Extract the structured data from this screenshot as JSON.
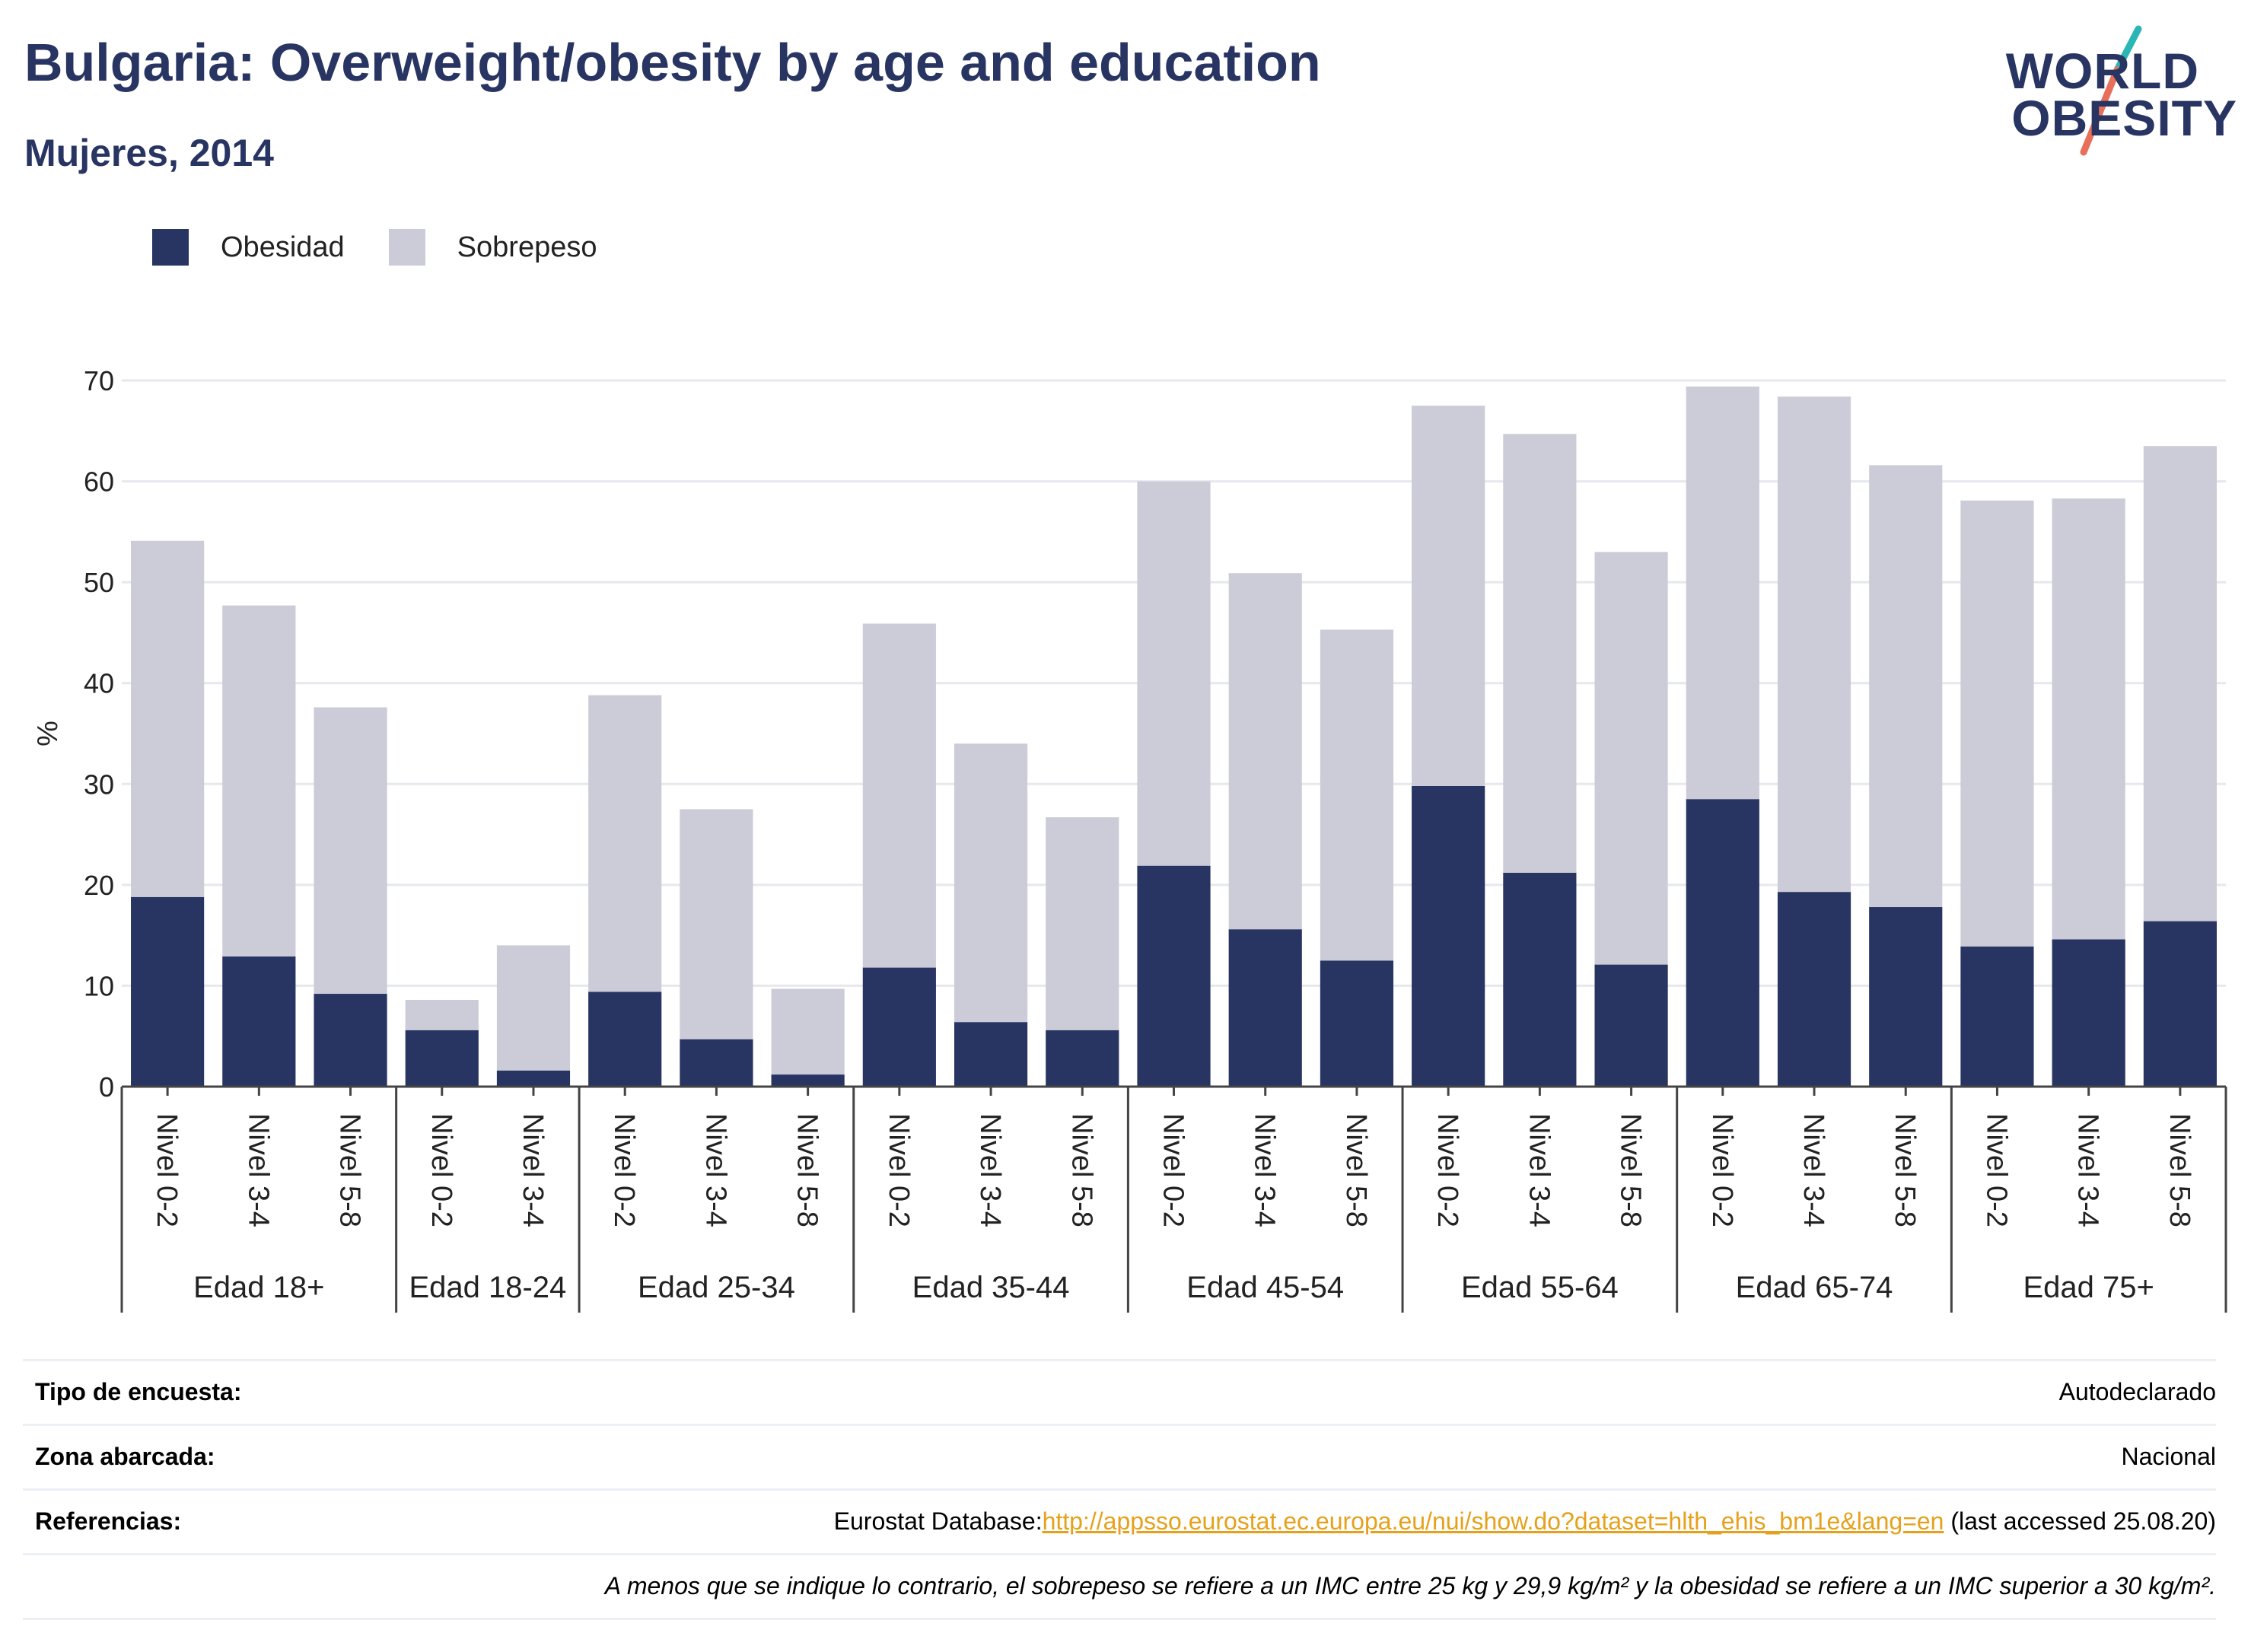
{
  "header": {
    "title": "Bulgaria: Overweight/obesity by age and education",
    "subtitle": "Mujeres, 2014"
  },
  "logo": {
    "line1": "WORLD",
    "line2": "OBESITY",
    "colors": {
      "text": "#283462",
      "slash_top": "#2cb5b5",
      "slash_bottom": "#e8705a"
    }
  },
  "legend": {
    "items": [
      {
        "label": "Obesidad",
        "color": "#283462"
      },
      {
        "label": "Sobrepeso",
        "color": "#cbccd8"
      }
    ]
  },
  "chart_data": {
    "type": "bar",
    "stacked": true,
    "ylabel": "%",
    "ylim": [
      0,
      70
    ],
    "yticks": [
      0,
      10,
      20,
      30,
      40,
      50,
      60,
      70
    ],
    "grid": true,
    "groups": [
      {
        "label": "Edad 18+",
        "categories": [
          "Nivel 0-2",
          "Nivel 3-4",
          "Nivel 5-8"
        ]
      },
      {
        "label": "Edad 18-24",
        "categories": [
          "Nivel 0-2",
          "Nivel 3-4"
        ]
      },
      {
        "label": "Edad 25-34",
        "categories": [
          "Nivel 0-2",
          "Nivel 3-4",
          "Nivel 5-8"
        ]
      },
      {
        "label": "Edad 35-44",
        "categories": [
          "Nivel 0-2",
          "Nivel 3-4",
          "Nivel 5-8"
        ]
      },
      {
        "label": "Edad 45-54",
        "categories": [
          "Nivel 0-2",
          "Nivel 3-4",
          "Nivel 5-8"
        ]
      },
      {
        "label": "Edad 55-64",
        "categories": [
          "Nivel 0-2",
          "Nivel 3-4",
          "Nivel 5-8"
        ]
      },
      {
        "label": "Edad 65-74",
        "categories": [
          "Nivel 0-2",
          "Nivel 3-4",
          "Nivel 5-8"
        ]
      },
      {
        "label": "Edad 75+",
        "categories": [
          "Nivel 0-2",
          "Nivel 3-4",
          "Nivel 5-8"
        ]
      }
    ],
    "series": [
      {
        "name": "Obesidad",
        "color": "#283462",
        "values": [
          18.8,
          12.9,
          9.2,
          5.6,
          1.6,
          9.4,
          4.7,
          1.2,
          11.8,
          6.4,
          5.6,
          21.9,
          15.6,
          12.5,
          29.8,
          21.2,
          12.1,
          28.5,
          19.3,
          17.8,
          13.9,
          14.6,
          16.4
        ]
      },
      {
        "name": "Sobrepeso",
        "color": "#cbccd8",
        "values": [
          35.3,
          34.8,
          28.4,
          3.0,
          12.4,
          29.4,
          22.8,
          8.5,
          34.1,
          27.6,
          21.1,
          38.1,
          35.3,
          32.8,
          37.7,
          43.5,
          40.9,
          40.9,
          49.1,
          43.8,
          44.2,
          43.7,
          47.1
        ]
      }
    ]
  },
  "meta": {
    "rows": [
      {
        "label": "Tipo de encuesta:",
        "value": "Autodeclarado"
      },
      {
        "label": "Zona abarcada:",
        "value": "Nacional"
      },
      {
        "label": "Referencias:",
        "prefix": "Eurostat Database:",
        "link": "http://appsso.eurostat.ec.europa.eu/nui/show.do?dataset=hlth_ehis_bm1e&lang=en",
        "suffix": " (last accessed 25.08.20)"
      }
    ],
    "note": "A menos que se indique lo contrario, el sobrepeso se refiere a un IMC entre 25 kg y 29,9 kg/m² y la obesidad se refiere a un IMC superior a 30 kg/m²."
  }
}
